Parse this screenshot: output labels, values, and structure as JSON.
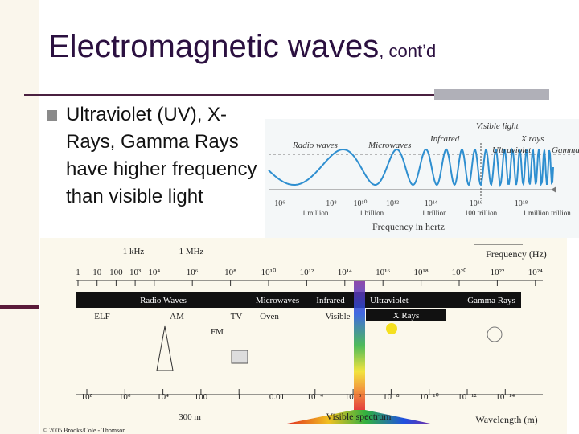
{
  "header": {
    "title": "Electromagnetic waves",
    "title_suffix": ", cont’d"
  },
  "bullets": [
    "Ultraviolet (UV), X-Rays, Gamma Rays have higher frequency than visible light"
  ],
  "figure_top": {
    "bands": [
      "Radio waves",
      "Microwaves",
      "Infrared",
      "Visible light",
      "X rays",
      "Ultraviolet",
      "Gamma rays"
    ],
    "ticks": [
      "10⁶",
      "10⁸",
      "10¹⁰",
      "10¹²",
      "10¹⁴",
      "10¹⁶",
      "10¹⁸"
    ],
    "tick_names": [
      "1 million",
      "1 billion",
      "1 trillion",
      "100 trillion",
      "1 million trillion"
    ],
    "axis_label": "Frequency in hertz"
  },
  "figure_bottom": {
    "frequency_label": "Frequency (Hz)",
    "khz": "1 kHz",
    "mhz": "1 MHz",
    "frequency_ticks": [
      "1",
      "10",
      "100",
      "10³",
      "10⁴",
      "10⁶",
      "10⁸",
      "10¹⁰",
      "10¹²",
      "10¹⁴",
      "10¹⁶",
      "10¹⁸",
      "10²⁰",
      "10²²",
      "10²⁴"
    ],
    "bands": [
      "Radio Waves",
      "Microwaves",
      "Infrared",
      "Ultraviolet",
      "Gamma Rays"
    ],
    "xrays": "X Rays",
    "sub_bands": [
      "ELF",
      "AM",
      "TV",
      "FM",
      "Oven",
      "Visible"
    ],
    "wavelength_ticks": [
      "10⁸",
      "10⁶",
      "10⁴",
      "100",
      "1",
      "0.01",
      "10⁻⁴",
      "10⁻⁶",
      "10⁻⁸",
      "10⁻¹⁰",
      "10⁻¹²",
      "10⁻¹⁴"
    ],
    "wavelength_note": "300 m",
    "visible_spectrum": "Visible spectrum",
    "wavelength_label": "Wavelength (m)",
    "credit": "© 2005 Brooks/Cole - Thomson"
  }
}
